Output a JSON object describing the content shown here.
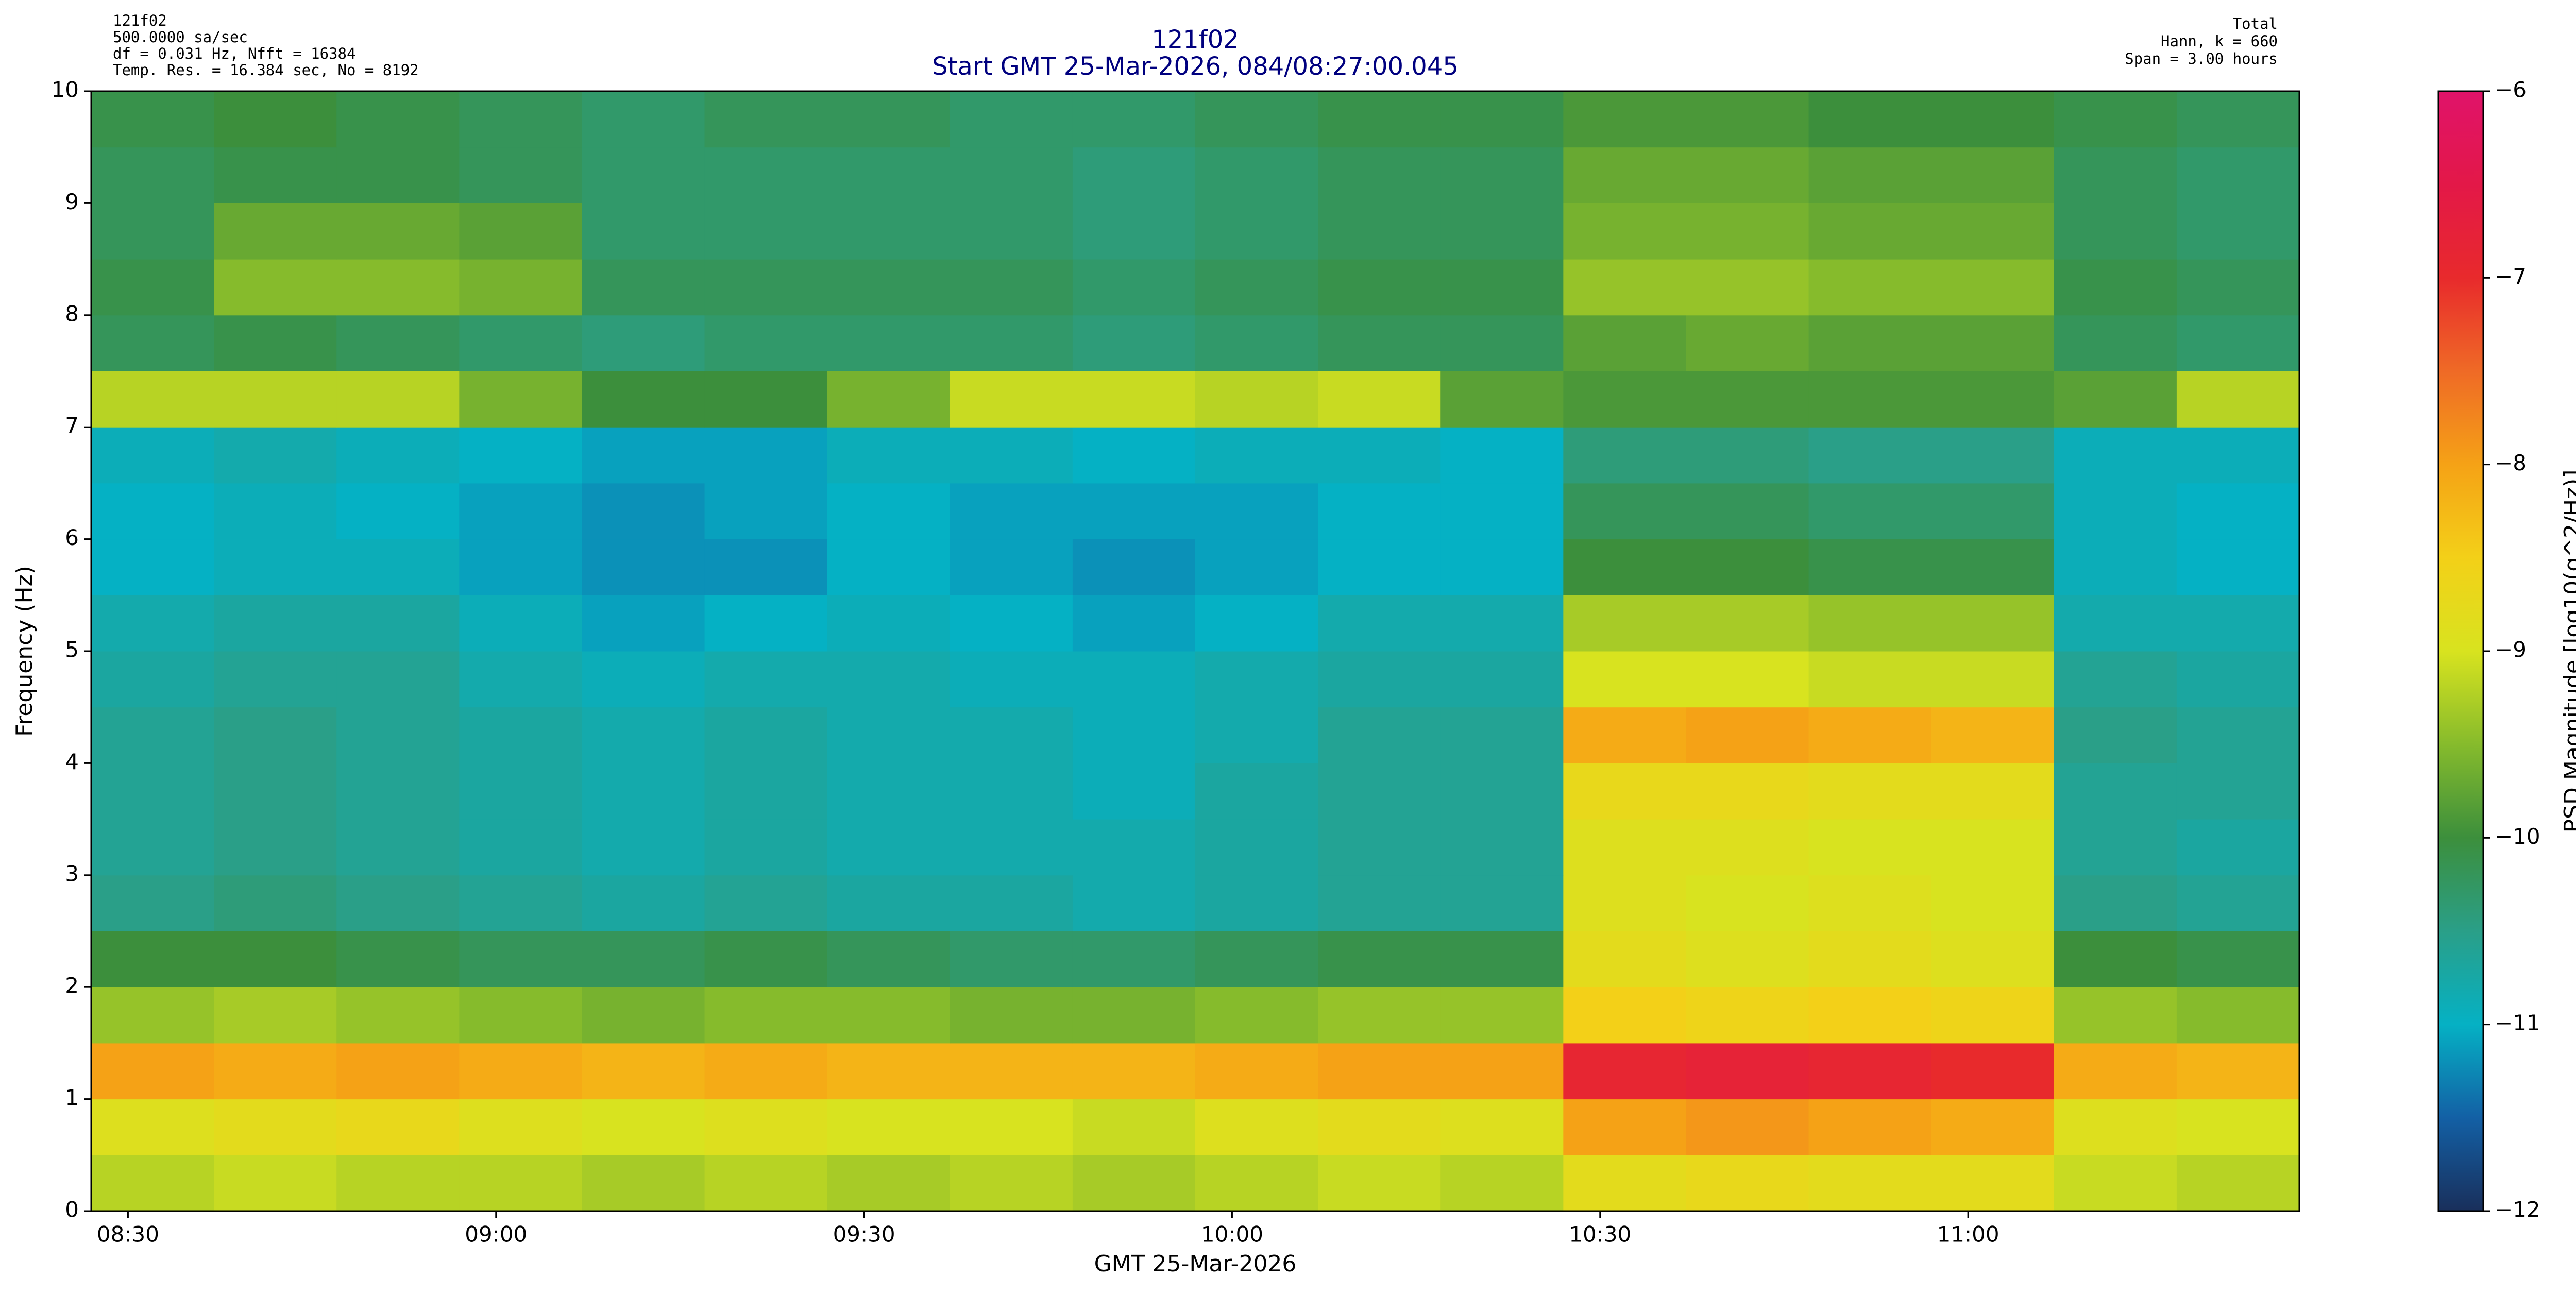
{
  "chart_data": {
    "type": "heatmap",
    "title": "121f02",
    "subtitle": "Start GMT 25-Mar-2026, 084/08:27:00.045",
    "annotations_left": [
      "121f02",
      "500.0000 sa/sec",
      "df = 0.031 Hz,  Nfft = 16384",
      "Temp. Res. = 16.384 sec, No = 8192"
    ],
    "annotations_right": [
      "Total",
      "Hann, k = 660",
      "Span = 3.00 hours"
    ],
    "xlabel": "GMT 25-Mar-2026",
    "ylabel": "Frequency (Hz)",
    "colorbar_label": "PSD Magnitude [log10(g^2/Hz)]",
    "xlim": [
      507,
      687
    ],
    "xticks": [
      {
        "value": 510,
        "label": "08:30"
      },
      {
        "value": 540,
        "label": "09:00"
      },
      {
        "value": 570,
        "label": "09:30"
      },
      {
        "value": 600,
        "label": "10:00"
      },
      {
        "value": 630,
        "label": "10:30"
      },
      {
        "value": 660,
        "label": "11:00"
      }
    ],
    "ylim": [
      0,
      10
    ],
    "yticks": [
      0,
      1,
      2,
      3,
      4,
      5,
      6,
      7,
      8,
      9,
      10
    ],
    "clim": [
      -12,
      -6
    ],
    "cticks": [
      {
        "value": -12,
        "label": "−12"
      },
      {
        "value": -11,
        "label": "−11"
      },
      {
        "value": -10,
        "label": "−10"
      },
      {
        "value": -9,
        "label": "−9"
      },
      {
        "value": -8,
        "label": "−8"
      },
      {
        "value": -7,
        "label": "−7"
      },
      {
        "value": -6,
        "label": "−6"
      }
    ],
    "colormap": [
      "#192f5b",
      "#1360a5",
      "#05b1c4",
      "#2a9f88",
      "#3c8f3c",
      "#86bb2c",
      "#d8e31f",
      "#f3d018",
      "#f5a216",
      "#ef6a26",
      "#e82a2c",
      "#e31848",
      "#e0136a"
    ],
    "x": [
      512,
      522,
      532,
      542,
      552,
      562,
      572,
      582,
      592,
      602,
      612,
      622,
      632,
      642,
      652,
      662,
      672,
      682
    ],
    "y": [
      0.25,
      0.75,
      1.25,
      1.75,
      2.25,
      2.75,
      3.25,
      3.75,
      4.25,
      4.75,
      5.25,
      5.75,
      6.25,
      6.75,
      7.25,
      7.75,
      8.25,
      8.75,
      9.25,
      9.75
    ],
    "values": [
      [
        -9.2,
        -9.1,
        -9.2,
        -9.2,
        -9.3,
        -9.2,
        -9.3,
        -9.2,
        -9.3,
        -9.2,
        -9.1,
        -9.2,
        -8.8,
        -8.7,
        -8.8,
        -8.8,
        -9.1,
        -9.2
      ],
      [
        -8.9,
        -8.8,
        -8.7,
        -8.9,
        -9.0,
        -8.9,
        -9.0,
        -9.0,
        -9.1,
        -8.9,
        -8.8,
        -8.9,
        -8.0,
        -7.9,
        -8.0,
        -8.1,
        -8.9,
        -9.0
      ],
      [
        -8.0,
        -8.1,
        -8.0,
        -8.1,
        -8.2,
        -8.1,
        -8.2,
        -8.2,
        -8.2,
        -8.1,
        -8.0,
        -8.0,
        -6.9,
        -6.8,
        -6.9,
        -7.0,
        -8.1,
        -8.2
      ],
      [
        -9.4,
        -9.3,
        -9.4,
        -9.5,
        -9.6,
        -9.5,
        -9.5,
        -9.6,
        -9.6,
        -9.5,
        -9.4,
        -9.4,
        -8.5,
        -8.6,
        -8.5,
        -8.6,
        -9.4,
        -9.5
      ],
      [
        -10.0,
        -10.0,
        -10.1,
        -10.2,
        -10.2,
        -10.1,
        -10.2,
        -10.3,
        -10.3,
        -10.2,
        -10.1,
        -10.1,
        -8.8,
        -8.9,
        -8.8,
        -8.9,
        -10.0,
        -10.1
      ],
      [
        -10.5,
        -10.4,
        -10.5,
        -10.6,
        -10.7,
        -10.6,
        -10.7,
        -10.7,
        -10.8,
        -10.7,
        -10.6,
        -10.6,
        -8.9,
        -9.0,
        -8.9,
        -9.0,
        -10.5,
        -10.6
      ],
      [
        -10.6,
        -10.5,
        -10.6,
        -10.7,
        -10.8,
        -10.7,
        -10.8,
        -10.8,
        -10.8,
        -10.7,
        -10.6,
        -10.6,
        -8.9,
        -8.9,
        -9.0,
        -9.0,
        -10.6,
        -10.7
      ],
      [
        -10.6,
        -10.5,
        -10.6,
        -10.7,
        -10.8,
        -10.7,
        -10.8,
        -10.8,
        -10.9,
        -10.7,
        -10.6,
        -10.6,
        -8.7,
        -8.7,
        -8.8,
        -8.8,
        -10.6,
        -10.6
      ],
      [
        -10.6,
        -10.5,
        -10.6,
        -10.7,
        -10.8,
        -10.7,
        -10.8,
        -10.8,
        -10.9,
        -10.8,
        -10.6,
        -10.6,
        -8.1,
        -8.0,
        -8.1,
        -8.2,
        -10.5,
        -10.6
      ],
      [
        -10.7,
        -10.6,
        -10.6,
        -10.8,
        -10.9,
        -10.8,
        -10.8,
        -10.9,
        -10.9,
        -10.8,
        -10.7,
        -10.7,
        -9.0,
        -9.0,
        -9.1,
        -9.1,
        -10.6,
        -10.7
      ],
      [
        -10.8,
        -10.7,
        -10.7,
        -10.9,
        -11.1,
        -11.0,
        -10.9,
        -11.0,
        -11.1,
        -11.0,
        -10.8,
        -10.8,
        -9.3,
        -9.3,
        -9.4,
        -9.4,
        -10.8,
        -10.8
      ],
      [
        -11.0,
        -10.9,
        -10.9,
        -11.1,
        -11.2,
        -11.2,
        -11.0,
        -11.1,
        -11.2,
        -11.1,
        -11.0,
        -11.0,
        -10.0,
        -10.0,
        -10.1,
        -10.1,
        -10.9,
        -11.0
      ],
      [
        -11.0,
        -10.9,
        -11.0,
        -11.1,
        -11.2,
        -11.1,
        -11.0,
        -11.1,
        -11.1,
        -11.1,
        -11.0,
        -11.0,
        -10.2,
        -10.2,
        -10.3,
        -10.3,
        -10.9,
        -11.0
      ],
      [
        -10.9,
        -10.8,
        -10.9,
        -11.0,
        -11.1,
        -11.1,
        -10.9,
        -10.9,
        -11.0,
        -10.9,
        -10.9,
        -11.0,
        -10.4,
        -10.4,
        -10.5,
        -10.5,
        -10.9,
        -10.9
      ],
      [
        -9.2,
        -9.2,
        -9.2,
        -9.6,
        -10.0,
        -10.0,
        -9.6,
        -9.1,
        -9.1,
        -9.2,
        -9.1,
        -9.8,
        -9.9,
        -9.9,
        -9.9,
        -9.9,
        -9.8,
        -9.2
      ],
      [
        -10.2,
        -10.1,
        -10.2,
        -10.3,
        -10.4,
        -10.3,
        -10.3,
        -10.3,
        -10.4,
        -10.3,
        -10.2,
        -10.2,
        -9.8,
        -9.7,
        -9.8,
        -9.8,
        -10.2,
        -10.3
      ],
      [
        -10.1,
        -9.5,
        -9.5,
        -9.6,
        -10.2,
        -10.2,
        -10.2,
        -10.2,
        -10.3,
        -10.2,
        -10.1,
        -10.1,
        -9.4,
        -9.4,
        -9.5,
        -9.5,
        -10.1,
        -10.2
      ],
      [
        -10.2,
        -9.7,
        -9.7,
        -9.8,
        -10.3,
        -10.3,
        -10.3,
        -10.3,
        -10.4,
        -10.3,
        -10.2,
        -10.2,
        -9.6,
        -9.6,
        -9.7,
        -9.7,
        -10.2,
        -10.3
      ],
      [
        -10.2,
        -10.1,
        -10.1,
        -10.2,
        -10.3,
        -10.3,
        -10.3,
        -10.3,
        -10.4,
        -10.3,
        -10.2,
        -10.2,
        -9.7,
        -9.7,
        -9.8,
        -9.8,
        -10.2,
        -10.3
      ],
      [
        -10.1,
        -10.0,
        -10.1,
        -10.2,
        -10.3,
        -10.2,
        -10.2,
        -10.3,
        -10.3,
        -10.2,
        -10.1,
        -10.1,
        -9.9,
        -9.9,
        -10.0,
        -10.0,
        -10.1,
        -10.2
      ]
    ]
  }
}
